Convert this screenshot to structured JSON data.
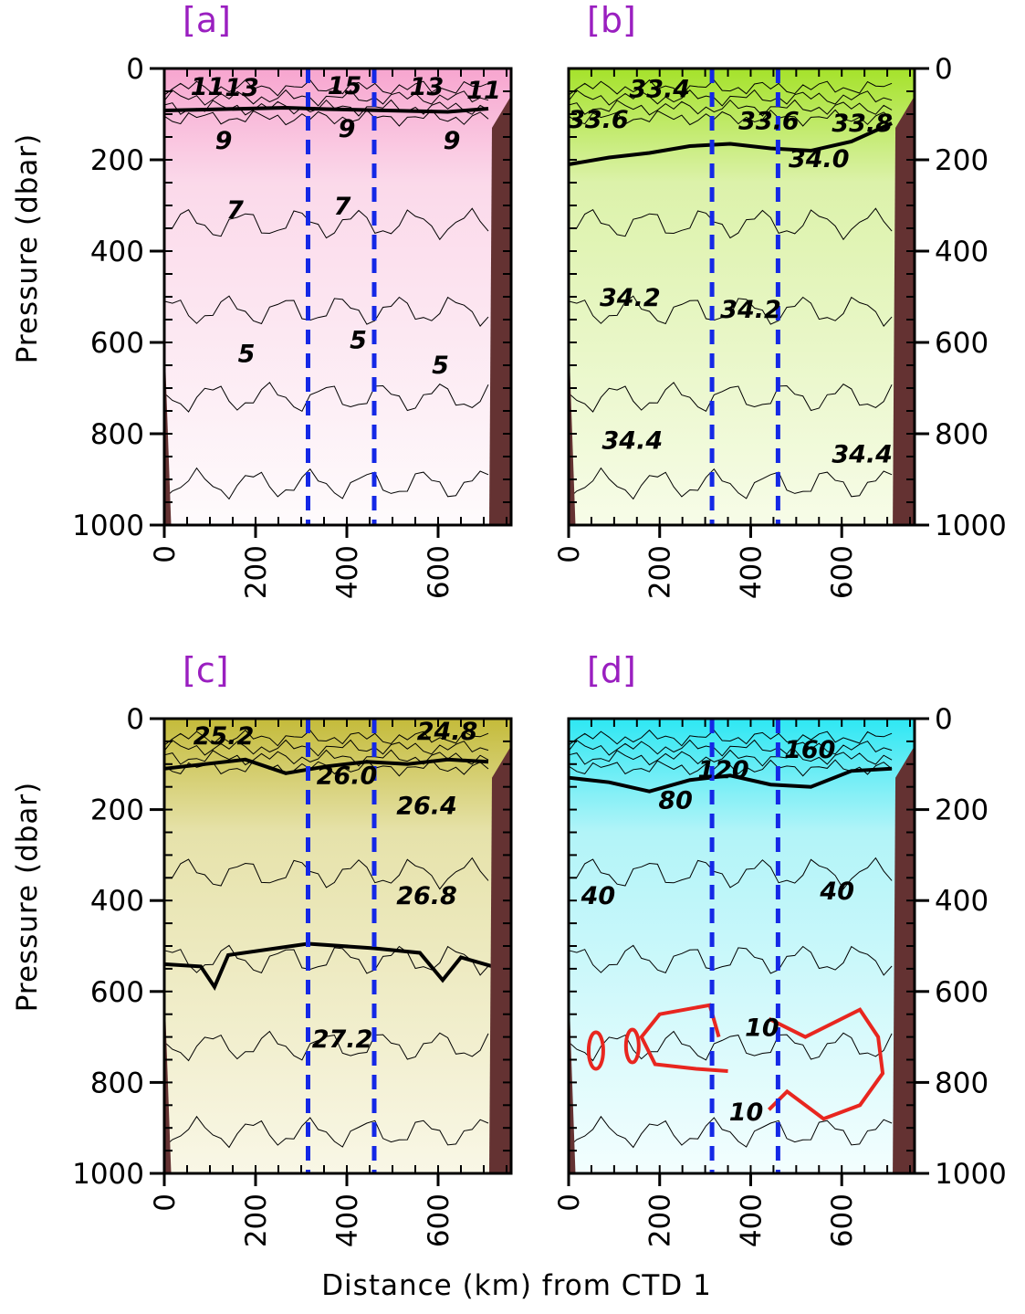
{
  "figure": {
    "xlabel": "Distance (km) from CTD 1",
    "ylabel": "Pressure (dbar)"
  },
  "chart_data": [
    {
      "type": "heatmap",
      "panel": "[a]",
      "x_ticks": [
        "0",
        "200",
        "400",
        "600"
      ],
      "y_ticks": [
        "0",
        "200",
        "400",
        "600",
        "800",
        "1000"
      ],
      "xlim": [
        0,
        760
      ],
      "ylim": [
        1000,
        0
      ],
      "y_axis_side": "left",
      "colors": {
        "top": "#f7a5cf",
        "mid": "#fbd9ea",
        "bottom": "#fefbfc"
      },
      "vertical_dashed_lines_km": [
        315,
        460
      ],
      "contour_labels": [
        {
          "text": "11",
          "x": 95,
          "y": 40
        },
        {
          "text": "13",
          "x": 170,
          "y": 42
        },
        {
          "text": "15",
          "x": 395,
          "y": 38
        },
        {
          "text": "13",
          "x": 575,
          "y": 40
        },
        {
          "text": "11",
          "x": 700,
          "y": 48
        },
        {
          "text": "9",
          "x": 130,
          "y": 158
        },
        {
          "text": "9",
          "x": 400,
          "y": 132
        },
        {
          "text": "9",
          "x": 630,
          "y": 158
        },
        {
          "text": "7",
          "x": 155,
          "y": 310
        },
        {
          "text": "7",
          "x": 390,
          "y": 302
        },
        {
          "text": "5",
          "x": 180,
          "y": 625
        },
        {
          "text": "5",
          "x": 425,
          "y": 595
        },
        {
          "text": "5",
          "x": 605,
          "y": 650
        }
      ],
      "bold_contour_depth": [
        92,
        90,
        88,
        86,
        89,
        91,
        93,
        95,
        88
      ]
    },
    {
      "type": "heatmap",
      "panel": "[b]",
      "x_ticks": [
        "0",
        "200",
        "400",
        "600"
      ],
      "y_ticks": [
        "0",
        "200",
        "400",
        "600",
        "800",
        "1000"
      ],
      "xlim": [
        0,
        760
      ],
      "ylim": [
        1000,
        0
      ],
      "y_axis_side": "right",
      "colors": {
        "top": "#a5e22a",
        "mid": "#dcf2aa",
        "bottom": "#f7fce8"
      },
      "vertical_dashed_lines_km": [
        315,
        460
      ],
      "contour_labels": [
        {
          "text": "33.4",
          "x": 200,
          "y": 45
        },
        {
          "text": "33.6",
          "x": 65,
          "y": 112
        },
        {
          "text": "33.6",
          "x": 440,
          "y": 115
        },
        {
          "text": "33.8",
          "x": 645,
          "y": 120
        },
        {
          "text": "34.0",
          "x": 550,
          "y": 198
        },
        {
          "text": "34.2",
          "x": 135,
          "y": 502
        },
        {
          "text": "34.2",
          "x": 400,
          "y": 528
        },
        {
          "text": "34.4",
          "x": 140,
          "y": 815
        },
        {
          "text": "34.4",
          "x": 645,
          "y": 845
        }
      ],
      "bold_contour_depth": [
        210,
        195,
        185,
        170,
        165,
        175,
        180,
        160,
        120
      ]
    },
    {
      "type": "heatmap",
      "panel": "[c]",
      "x_ticks": [
        "0",
        "200",
        "400",
        "600"
      ],
      "y_ticks": [
        "0",
        "200",
        "400",
        "600",
        "800",
        "1000"
      ],
      "xlim": [
        0,
        760
      ],
      "ylim": [
        1000,
        0
      ],
      "y_axis_side": "left",
      "colors": {
        "top": "#c4bb3a",
        "mid": "#e6e2aa",
        "bottom": "#f9f7e6"
      },
      "vertical_dashed_lines_km": [
        315,
        460
      ],
      "contour_labels": [
        {
          "text": "25.2",
          "x": 130,
          "y": 38
        },
        {
          "text": "24.8",
          "x": 620,
          "y": 28
        },
        {
          "text": "26.0",
          "x": 400,
          "y": 125
        },
        {
          "text": "26.4",
          "x": 575,
          "y": 192
        },
        {
          "text": "26.8",
          "x": 575,
          "y": 390
        },
        {
          "text": "27.2",
          "x": 390,
          "y": 705
        }
      ],
      "bold_contour_depth": [
        110,
        100,
        90,
        120,
        105,
        95,
        100,
        90,
        95
      ]
    },
    {
      "type": "heatmap",
      "panel": "[d]",
      "x_ticks": [
        "0",
        "200",
        "400",
        "600"
      ],
      "y_ticks": [
        "0",
        "200",
        "400",
        "600",
        "800",
        "1000"
      ],
      "xlim": [
        0,
        760
      ],
      "ylim": [
        1000,
        0
      ],
      "y_axis_side": "right",
      "colors": {
        "top": "#2ee7f3",
        "mid": "#b2f4f8",
        "bottom": "#f3fefe"
      },
      "vertical_dashed_lines_km": [
        315,
        460
      ],
      "contour_labels": [
        {
          "text": "160",
          "x": 530,
          "y": 68
        },
        {
          "text": "120",
          "x": 340,
          "y": 112
        },
        {
          "text": "80",
          "x": 235,
          "y": 180
        },
        {
          "text": "40",
          "x": 65,
          "y": 390
        },
        {
          "text": "40",
          "x": 590,
          "y": 380
        },
        {
          "text": "10",
          "x": 425,
          "y": 680
        },
        {
          "text": "10",
          "x": 390,
          "y": 865
        }
      ],
      "bold_contour_depth": [
        130,
        140,
        160,
        135,
        125,
        145,
        150,
        115,
        110
      ]
    }
  ]
}
